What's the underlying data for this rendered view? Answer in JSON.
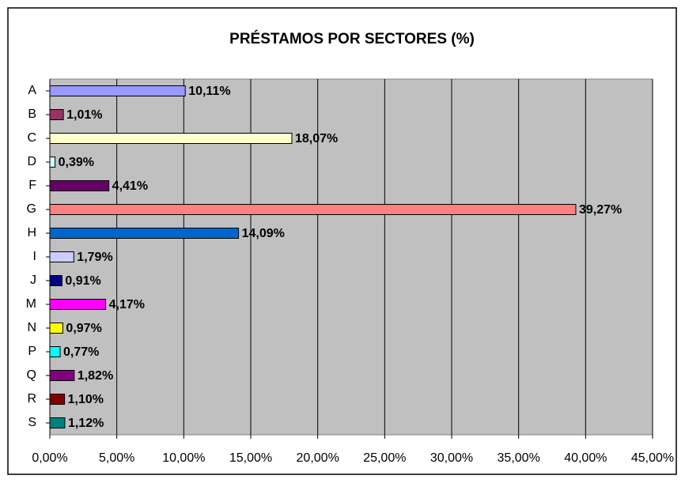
{
  "chart_data": {
    "type": "bar",
    "orientation": "horizontal",
    "title": "PRÉSTAMOS POR SECTORES (%)",
    "categories": [
      "A",
      "B",
      "C",
      "D",
      "F",
      "G",
      "H",
      "I",
      "J",
      "M",
      "N",
      "P",
      "Q",
      "R",
      "S"
    ],
    "values": [
      10.11,
      1.01,
      18.07,
      0.39,
      4.41,
      39.27,
      14.09,
      1.79,
      0.91,
      4.17,
      0.97,
      0.77,
      1.82,
      1.1,
      1.12
    ],
    "value_labels": [
      "10,11%",
      "1,01%",
      "18,07%",
      "0,39%",
      "4,41%",
      "39,27%",
      "14,09%",
      "1,79%",
      "0,91%",
      "4,17%",
      "0,97%",
      "0,77%",
      "1,82%",
      "1,10%",
      "1,12%"
    ],
    "colors": [
      "#9999ff",
      "#993366",
      "#ffffcc",
      "#ccffff",
      "#660066",
      "#ff8080",
      "#0066cc",
      "#ccccff",
      "#000080",
      "#ff00ff",
      "#ffff00",
      "#00ffff",
      "#800080",
      "#800000",
      "#008080"
    ],
    "xlim": [
      0,
      45
    ],
    "xticks": [
      {
        "value": 0,
        "label": "0,00%"
      },
      {
        "value": 5,
        "label": "5,00%"
      },
      {
        "value": 10,
        "label": "10,00%"
      },
      {
        "value": 15,
        "label": "15,00%"
      },
      {
        "value": 20,
        "label": "20,00%"
      },
      {
        "value": 25,
        "label": "25,00%"
      },
      {
        "value": 30,
        "label": "30,00%"
      },
      {
        "value": 35,
        "label": "35,00%"
      },
      {
        "value": 40,
        "label": "40,00%"
      },
      {
        "value": 45,
        "label": "45,00%"
      }
    ],
    "grid": true
  }
}
